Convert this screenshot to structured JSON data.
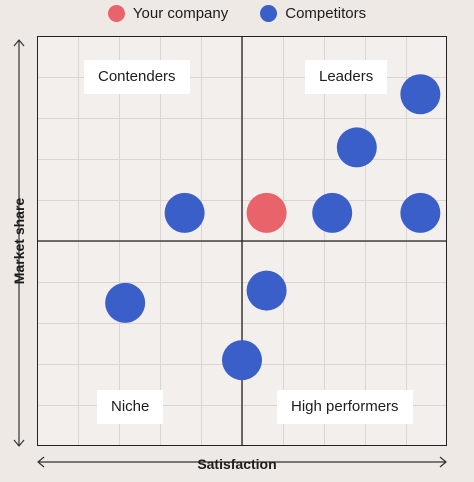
{
  "chart_data": {
    "type": "scatter",
    "xlabel": "Satisfaction",
    "ylabel": "Market share",
    "xlim": [
      0,
      10
    ],
    "ylim": [
      0,
      10
    ],
    "grid": true,
    "legend_position": "top-center",
    "quadrant_labels": {
      "top_left": "Contenders",
      "top_right": "Leaders",
      "bottom_left": "Niche",
      "bottom_right": "High performers"
    },
    "series": [
      {
        "name": "Your company",
        "color": "#e8636a",
        "points": [
          {
            "x": 5.6,
            "y": 5.7
          }
        ]
      },
      {
        "name": "Competitors",
        "color": "#3a5fc8",
        "points": [
          {
            "x": 9.35,
            "y": 8.6
          },
          {
            "x": 7.8,
            "y": 7.3
          },
          {
            "x": 7.2,
            "y": 5.7
          },
          {
            "x": 9.35,
            "y": 5.7
          },
          {
            "x": 3.6,
            "y": 5.7
          },
          {
            "x": 5.6,
            "y": 3.8
          },
          {
            "x": 2.15,
            "y": 3.5
          },
          {
            "x": 5.0,
            "y": 2.1
          }
        ]
      }
    ]
  }
}
